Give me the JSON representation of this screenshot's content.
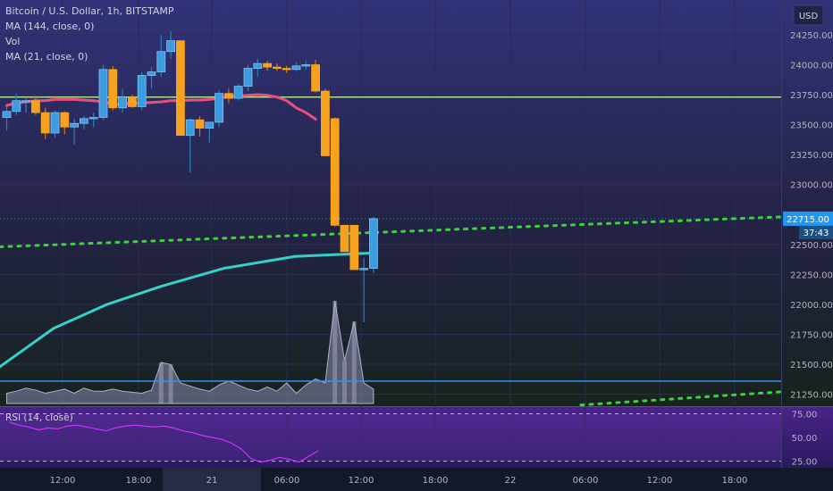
{
  "header": {
    "symbol": "Bitcoin / U.S. Dollar, 1h, BITSTAMP",
    "ma144": "MA (144, close, 0)",
    "vol": "Vol",
    "ma21": "MA (21, close, 0)",
    "rsi": "RSI (14, close)",
    "currency": "USD"
  },
  "colors": {
    "up": "#3d9be0",
    "down": "#f7a21e",
    "ma21": "#e8507a",
    "ma144": "#36d0c8",
    "dotted": "#3cd23c",
    "hline_top": "#a8e08c",
    "hline_bottom": "#3c8fe6",
    "rsi": "#cc33ff"
  },
  "chart_data": [
    {
      "type": "candlestick",
      "title": "Bitcoin / U.S. Dollar, 1h, BITSTAMP",
      "x_ticks": [
        "12:00",
        "18:00",
        "21",
        "06:00",
        "12:00",
        "18:00",
        "22",
        "06:00",
        "12:00",
        "18:00"
      ],
      "y_ticks": [
        21250,
        21500,
        21750,
        22000,
        22250,
        22500,
        22715,
        23000,
        23250,
        23500,
        23750,
        24000,
        24250
      ],
      "ylim": [
        21150,
        24540
      ],
      "last_price": "22715.00",
      "countdown": "37:43",
      "candles": [
        {
          "o": 23560,
          "h": 23650,
          "l": 23450,
          "c": 23610
        },
        {
          "o": 23610,
          "h": 23760,
          "l": 23580,
          "c": 23700
        },
        {
          "o": 23700,
          "h": 23720,
          "l": 23600,
          "c": 23700
        },
        {
          "o": 23700,
          "h": 23740,
          "l": 23580,
          "c": 23600
        },
        {
          "o": 23600,
          "h": 23640,
          "l": 23380,
          "c": 23430
        },
        {
          "o": 23430,
          "h": 23620,
          "l": 23390,
          "c": 23600
        },
        {
          "o": 23600,
          "h": 23610,
          "l": 23420,
          "c": 23480
        },
        {
          "o": 23480,
          "h": 23550,
          "l": 23330,
          "c": 23510
        },
        {
          "o": 23510,
          "h": 23570,
          "l": 23460,
          "c": 23550
        },
        {
          "o": 23550,
          "h": 23600,
          "l": 23480,
          "c": 23560
        },
        {
          "o": 23560,
          "h": 24000,
          "l": 23540,
          "c": 23960
        },
        {
          "o": 23960,
          "h": 23990,
          "l": 23620,
          "c": 23640
        },
        {
          "o": 23640,
          "h": 23800,
          "l": 23600,
          "c": 23730
        },
        {
          "o": 23730,
          "h": 23750,
          "l": 23640,
          "c": 23650
        },
        {
          "o": 23650,
          "h": 23940,
          "l": 23620,
          "c": 23910
        },
        {
          "o": 23910,
          "h": 23980,
          "l": 23800,
          "c": 23940
        },
        {
          "o": 23940,
          "h": 24250,
          "l": 23900,
          "c": 24110
        },
        {
          "o": 24110,
          "h": 24280,
          "l": 24050,
          "c": 24200
        },
        {
          "o": 24200,
          "h": 24200,
          "l": 23410,
          "c": 23410
        },
        {
          "o": 23410,
          "h": 23550,
          "l": 23100,
          "c": 23540
        },
        {
          "o": 23540,
          "h": 23570,
          "l": 23400,
          "c": 23470
        },
        {
          "o": 23470,
          "h": 23520,
          "l": 23350,
          "c": 23520
        },
        {
          "o": 23520,
          "h": 23790,
          "l": 23480,
          "c": 23760
        },
        {
          "o": 23760,
          "h": 23800,
          "l": 23680,
          "c": 23720
        },
        {
          "o": 23720,
          "h": 23840,
          "l": 23700,
          "c": 23820
        },
        {
          "o": 23820,
          "h": 24000,
          "l": 23780,
          "c": 23970
        },
        {
          "o": 23970,
          "h": 24050,
          "l": 23900,
          "c": 24010
        },
        {
          "o": 24010,
          "h": 24030,
          "l": 23950,
          "c": 23980
        },
        {
          "o": 23980,
          "h": 24010,
          "l": 23950,
          "c": 23970
        },
        {
          "o": 23970,
          "h": 23990,
          "l": 23930,
          "c": 23960
        },
        {
          "o": 23960,
          "h": 24020,
          "l": 23940,
          "c": 23990
        },
        {
          "o": 23990,
          "h": 24030,
          "l": 23960,
          "c": 24000
        },
        {
          "o": 24000,
          "h": 24040,
          "l": 23770,
          "c": 23780
        },
        {
          "o": 23780,
          "h": 23800,
          "l": 23240,
          "c": 23240
        },
        {
          "o": 23550,
          "h": 23560,
          "l": 22650,
          "c": 22660
        },
        {
          "o": 22660,
          "h": 22660,
          "l": 22440,
          "c": 22440
        },
        {
          "o": 22660,
          "h": 22660,
          "l": 22290,
          "c": 22290
        },
        {
          "o": 22290,
          "h": 22390,
          "l": 21850,
          "c": 22300
        },
        {
          "o": 22300,
          "h": 22730,
          "l": 22260,
          "c": 22715
        }
      ],
      "ma21": [
        23660,
        23680,
        23690,
        23700,
        23700,
        23710,
        23710,
        23710,
        23705,
        23700,
        23690,
        23670,
        23670,
        23680,
        23680,
        23685,
        23690,
        23700,
        23700,
        23705,
        23705,
        23710,
        23720,
        23735,
        23740,
        23745,
        23750,
        23745,
        23730,
        23700,
        23640,
        23600,
        23545
      ],
      "ma144": [
        21480,
        21800,
        22000,
        22150,
        22300,
        22400,
        22430
      ],
      "volume": [
        0.1,
        0.12,
        0.15,
        0.13,
        0.1,
        0.12,
        0.14,
        0.1,
        0.15,
        0.12,
        0.12,
        0.14,
        0.12,
        0.11,
        0.1,
        0.13,
        0.4,
        0.38,
        0.2,
        0.17,
        0.14,
        0.12,
        0.18,
        0.22,
        0.18,
        0.14,
        0.12,
        0.16,
        0.12,
        0.2,
        0.1,
        0.18,
        0.24,
        0.2,
        1.0,
        0.42,
        0.8,
        0.2,
        0.14
      ]
    },
    {
      "type": "line",
      "title": "RSI (14, close)",
      "y_ticks": [
        "75.00",
        "50.00",
        "25.00"
      ],
      "ylim": [
        18,
        82
      ],
      "values": [
        66,
        63,
        61,
        58,
        60,
        59,
        62,
        63,
        61,
        59,
        57,
        60,
        62,
        63,
        62,
        61,
        62,
        60,
        57,
        55,
        52,
        50,
        48,
        44,
        38,
        28,
        24,
        26,
        29,
        27,
        24,
        30,
        36
      ]
    }
  ]
}
